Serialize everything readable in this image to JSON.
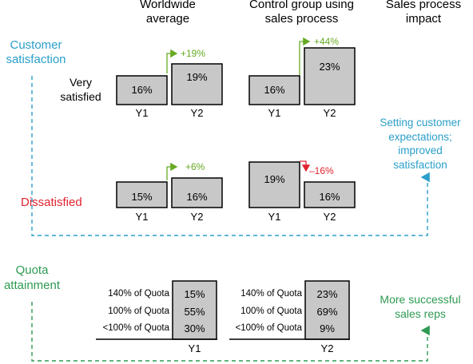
{
  "headers": {
    "worldwide": [
      "Worldwide",
      "average"
    ],
    "control": [
      "Control group using",
      "sales process"
    ],
    "impact": [
      "Sales process",
      "impact"
    ]
  },
  "customer_satisfaction": {
    "label": [
      "Customer",
      "satisfaction"
    ],
    "very_satisfied": {
      "label": [
        "Very",
        "satisfied"
      ],
      "worldwide": {
        "y1": "16%",
        "y2": "19%",
        "change": "+19%"
      },
      "control": {
        "y1": "16%",
        "y2": "23%",
        "change": "+44%"
      }
    },
    "dissatisfied": {
      "label": "Dissatisfied",
      "worldwide": {
        "y1": "15%",
        "y2": "16%",
        "change": "+6%"
      },
      "control": {
        "y1": "19%",
        "y2": "16%",
        "change": "–16%"
      }
    },
    "impact": [
      "Setting customer",
      "expectations;",
      "improved",
      "satisfaction"
    ]
  },
  "years": {
    "y1": "Y1",
    "y2": "Y2"
  },
  "quota": {
    "label": [
      "Quota",
      "attainment"
    ],
    "rows": [
      "140% of Quota",
      "100% of Quota",
      "<100% of Quota"
    ],
    "worldwide_values": [
      "15%",
      "55%",
      "30%"
    ],
    "control_values": [
      "23%",
      "69%",
      "9%"
    ],
    "worldwide_axis": "Y1",
    "control_axis": "Y2",
    "impact": [
      "More successful",
      "sales reps"
    ]
  },
  "colors": {
    "blue": "#2a9fc9",
    "red": "#e0232f",
    "green": "#2e9a52",
    "lime": "#66aa22",
    "box_fill": "#c8c8c8"
  }
}
